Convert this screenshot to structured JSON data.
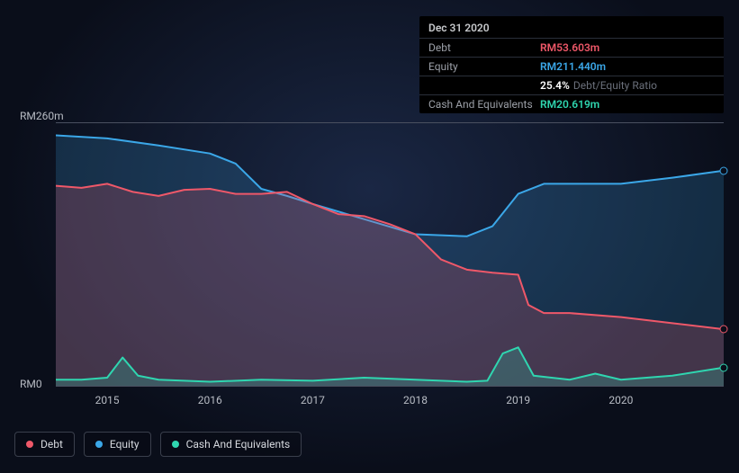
{
  "tooltip": {
    "date": "Dec 31 2020",
    "rows": [
      {
        "label": "Debt",
        "value": "RM53.603m",
        "color": "#ef5869"
      },
      {
        "label": "Equity",
        "value": "RM211.440m",
        "color": "#3ba7e8"
      },
      {
        "label": "",
        "value": "25.4%",
        "sub": "Debt/Equity Ratio",
        "color": "#ffffff"
      },
      {
        "label": "Cash And Equivalents",
        "value": "RM20.619m",
        "color": "#2fd6b0"
      }
    ]
  },
  "chart": {
    "type": "area",
    "background": "transparent",
    "y_axis": {
      "min_label": "RM0",
      "max_label": "RM260m",
      "min": 0,
      "max": 260
    },
    "x_axis": {
      "min": 2014.5,
      "max": 2021.0,
      "ticks": [
        "2015",
        "2016",
        "2017",
        "2018",
        "2019",
        "2020"
      ]
    },
    "series": [
      {
        "name": "Equity",
        "color": "#3ba7e8",
        "fill": "rgba(59,167,232,0.20)",
        "line_width": 2,
        "data": [
          {
            "x": 2014.5,
            "y": 248
          },
          {
            "x": 2015.0,
            "y": 245
          },
          {
            "x": 2015.5,
            "y": 238
          },
          {
            "x": 2016.0,
            "y": 230
          },
          {
            "x": 2016.25,
            "y": 220
          },
          {
            "x": 2016.5,
            "y": 195
          },
          {
            "x": 2016.75,
            "y": 188
          },
          {
            "x": 2017.0,
            "y": 180
          },
          {
            "x": 2017.5,
            "y": 165
          },
          {
            "x": 2018.0,
            "y": 150
          },
          {
            "x": 2018.5,
            "y": 148
          },
          {
            "x": 2018.75,
            "y": 158
          },
          {
            "x": 2019.0,
            "y": 190
          },
          {
            "x": 2019.25,
            "y": 200
          },
          {
            "x": 2019.5,
            "y": 200
          },
          {
            "x": 2020.0,
            "y": 200
          },
          {
            "x": 2020.5,
            "y": 206
          },
          {
            "x": 2021.0,
            "y": 213
          }
        ]
      },
      {
        "name": "Debt",
        "color": "#ef5869",
        "fill": "rgba(239,88,105,0.22)",
        "line_width": 2,
        "data": [
          {
            "x": 2014.5,
            "y": 198
          },
          {
            "x": 2014.75,
            "y": 196
          },
          {
            "x": 2015.0,
            "y": 200
          },
          {
            "x": 2015.25,
            "y": 192
          },
          {
            "x": 2015.5,
            "y": 188
          },
          {
            "x": 2015.75,
            "y": 194
          },
          {
            "x": 2016.0,
            "y": 195
          },
          {
            "x": 2016.25,
            "y": 190
          },
          {
            "x": 2016.5,
            "y": 190
          },
          {
            "x": 2016.75,
            "y": 192
          },
          {
            "x": 2017.0,
            "y": 180
          },
          {
            "x": 2017.25,
            "y": 170
          },
          {
            "x": 2017.5,
            "y": 168
          },
          {
            "x": 2017.75,
            "y": 160
          },
          {
            "x": 2018.0,
            "y": 150
          },
          {
            "x": 2018.25,
            "y": 125
          },
          {
            "x": 2018.5,
            "y": 115
          },
          {
            "x": 2018.75,
            "y": 112
          },
          {
            "x": 2019.0,
            "y": 110
          },
          {
            "x": 2019.1,
            "y": 80
          },
          {
            "x": 2019.25,
            "y": 72
          },
          {
            "x": 2019.5,
            "y": 72
          },
          {
            "x": 2020.0,
            "y": 68
          },
          {
            "x": 2020.5,
            "y": 62
          },
          {
            "x": 2021.0,
            "y": 56
          }
        ]
      },
      {
        "name": "Cash And Equivalents",
        "color": "#2fd6b0",
        "fill": "rgba(47,214,176,0.22)",
        "line_width": 2,
        "data": [
          {
            "x": 2014.5,
            "y": 6
          },
          {
            "x": 2014.75,
            "y": 6
          },
          {
            "x": 2015.0,
            "y": 8
          },
          {
            "x": 2015.15,
            "y": 28
          },
          {
            "x": 2015.3,
            "y": 10
          },
          {
            "x": 2015.5,
            "y": 6
          },
          {
            "x": 2016.0,
            "y": 4
          },
          {
            "x": 2016.5,
            "y": 6
          },
          {
            "x": 2017.0,
            "y": 5
          },
          {
            "x": 2017.5,
            "y": 8
          },
          {
            "x": 2018.0,
            "y": 6
          },
          {
            "x": 2018.5,
            "y": 4
          },
          {
            "x": 2018.7,
            "y": 5
          },
          {
            "x": 2018.85,
            "y": 32
          },
          {
            "x": 2019.0,
            "y": 38
          },
          {
            "x": 2019.15,
            "y": 10
          },
          {
            "x": 2019.5,
            "y": 6
          },
          {
            "x": 2019.75,
            "y": 12
          },
          {
            "x": 2020.0,
            "y": 6
          },
          {
            "x": 2020.5,
            "y": 10
          },
          {
            "x": 2021.0,
            "y": 18
          }
        ]
      }
    ],
    "legend": [
      {
        "label": "Debt",
        "color": "#ef5869"
      },
      {
        "label": "Equity",
        "color": "#3ba7e8"
      },
      {
        "label": "Cash And Equivalents",
        "color": "#2fd6b0"
      }
    ]
  }
}
